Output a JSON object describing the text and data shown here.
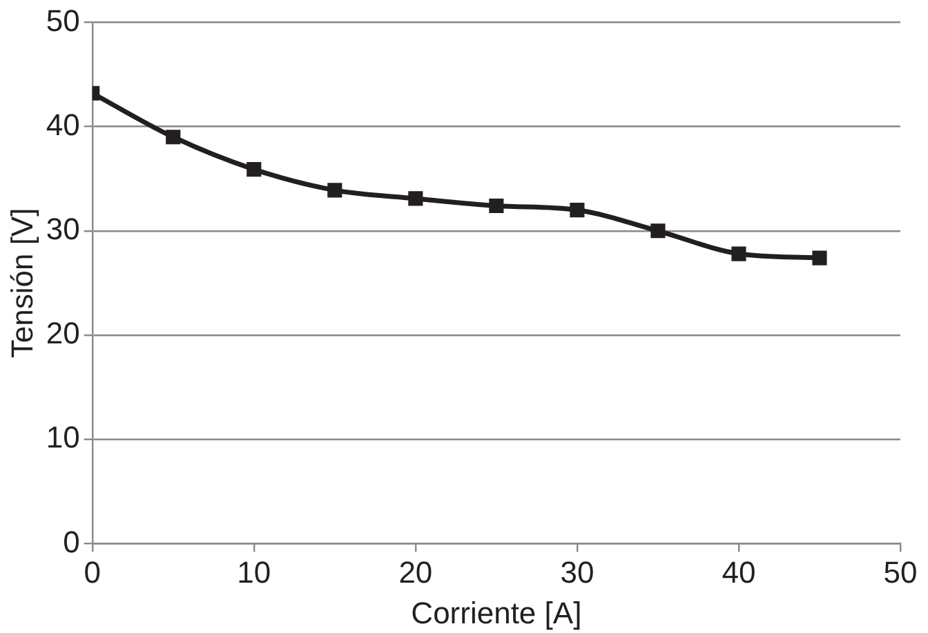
{
  "chart_data": {
    "type": "line",
    "xlabel": "Corriente [A]",
    "ylabel": "Tensión [V]",
    "x": [
      0,
      5,
      10,
      15,
      20,
      25,
      30,
      35,
      40,
      45
    ],
    "series": [
      {
        "color": "#231f20",
        "values": [
          43.2,
          39,
          35.9,
          33.9,
          33.1,
          32.4,
          32,
          30,
          27.8,
          27.4
        ]
      }
    ],
    "xlim": [
      0,
      50
    ],
    "xticks": [
      0,
      10,
      20,
      30,
      40,
      50
    ],
    "ylim": [
      0,
      50
    ],
    "yticks": [
      0,
      10,
      20,
      30,
      40,
      50
    ],
    "grid": "y",
    "legend": false,
    "marker": "square",
    "line_style": "solid"
  }
}
